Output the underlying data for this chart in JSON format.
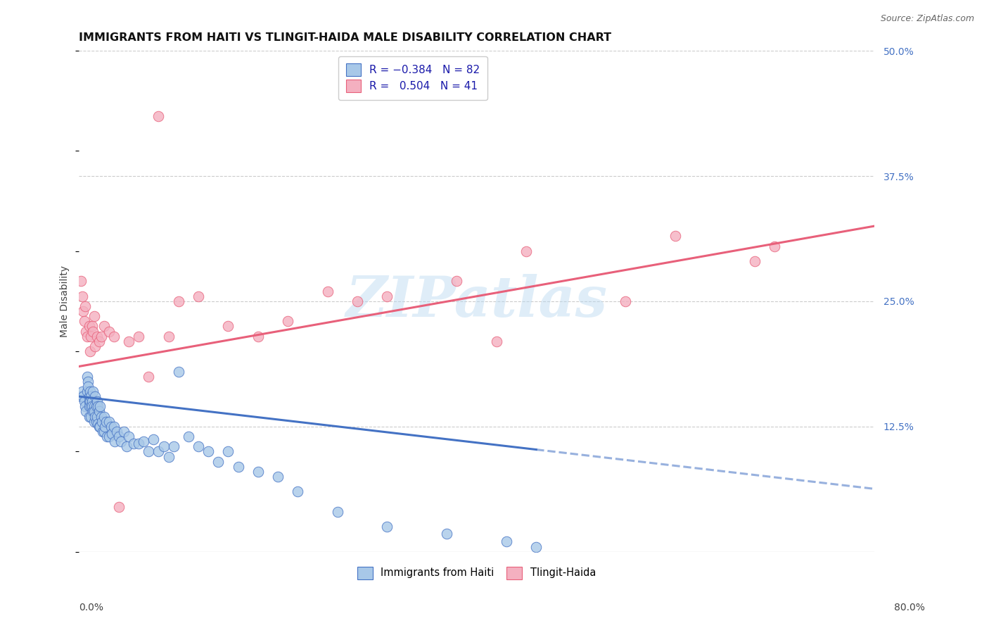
{
  "title": "IMMIGRANTS FROM HAITI VS TLINGIT-HAIDA MALE DISABILITY CORRELATION CHART",
  "source": "Source: ZipAtlas.com",
  "ylabel": "Male Disability",
  "legend_labels": [
    "Immigrants from Haiti",
    "Tlingit-Haida"
  ],
  "color_blue": "#a8c8e8",
  "color_pink": "#f4b0c0",
  "line_blue": "#4472c4",
  "line_pink": "#e8607a",
  "background": "#ffffff",
  "watermark": "ZIPatlas",
  "xlim": [
    0.0,
    0.8
  ],
  "ylim": [
    0.0,
    0.5
  ],
  "blue_scatter_x": [
    0.002,
    0.003,
    0.004,
    0.005,
    0.006,
    0.007,
    0.008,
    0.008,
    0.009,
    0.009,
    0.01,
    0.01,
    0.01,
    0.01,
    0.011,
    0.011,
    0.012,
    0.012,
    0.012,
    0.013,
    0.013,
    0.014,
    0.014,
    0.015,
    0.015,
    0.015,
    0.016,
    0.016,
    0.017,
    0.017,
    0.018,
    0.018,
    0.019,
    0.019,
    0.02,
    0.02,
    0.021,
    0.021,
    0.022,
    0.023,
    0.024,
    0.025,
    0.025,
    0.026,
    0.027,
    0.028,
    0.03,
    0.03,
    0.032,
    0.033,
    0.035,
    0.036,
    0.038,
    0.04,
    0.042,
    0.045,
    0.048,
    0.05,
    0.055,
    0.06,
    0.065,
    0.07,
    0.075,
    0.08,
    0.085,
    0.09,
    0.095,
    0.1,
    0.11,
    0.12,
    0.13,
    0.14,
    0.15,
    0.16,
    0.18,
    0.2,
    0.22,
    0.26,
    0.31,
    0.37,
    0.43,
    0.46
  ],
  "blue_scatter_y": [
    0.155,
    0.16,
    0.155,
    0.15,
    0.145,
    0.14,
    0.175,
    0.16,
    0.17,
    0.165,
    0.155,
    0.15,
    0.145,
    0.135,
    0.16,
    0.15,
    0.155,
    0.145,
    0.135,
    0.15,
    0.145,
    0.16,
    0.14,
    0.145,
    0.14,
    0.13,
    0.155,
    0.135,
    0.145,
    0.13,
    0.15,
    0.135,
    0.145,
    0.128,
    0.14,
    0.125,
    0.145,
    0.125,
    0.135,
    0.13,
    0.12,
    0.135,
    0.12,
    0.125,
    0.13,
    0.115,
    0.13,
    0.115,
    0.125,
    0.118,
    0.125,
    0.11,
    0.12,
    0.115,
    0.11,
    0.12,
    0.105,
    0.115,
    0.108,
    0.108,
    0.11,
    0.1,
    0.112,
    0.1,
    0.105,
    0.095,
    0.105,
    0.18,
    0.115,
    0.105,
    0.1,
    0.09,
    0.1,
    0.085,
    0.08,
    0.075,
    0.06,
    0.04,
    0.025,
    0.018,
    0.01,
    0.005
  ],
  "pink_scatter_x": [
    0.002,
    0.003,
    0.004,
    0.005,
    0.006,
    0.007,
    0.008,
    0.01,
    0.011,
    0.012,
    0.013,
    0.014,
    0.015,
    0.016,
    0.018,
    0.02,
    0.022,
    0.025,
    0.03,
    0.035,
    0.04,
    0.05,
    0.06,
    0.07,
    0.08,
    0.09,
    0.1,
    0.12,
    0.15,
    0.18,
    0.21,
    0.25,
    0.28,
    0.31,
    0.38,
    0.42,
    0.45,
    0.55,
    0.6,
    0.68,
    0.7
  ],
  "pink_scatter_y": [
    0.27,
    0.255,
    0.24,
    0.23,
    0.245,
    0.22,
    0.215,
    0.225,
    0.2,
    0.215,
    0.225,
    0.22,
    0.235,
    0.205,
    0.215,
    0.21,
    0.215,
    0.225,
    0.22,
    0.215,
    0.045,
    0.21,
    0.215,
    0.175,
    0.435,
    0.215,
    0.25,
    0.255,
    0.225,
    0.215,
    0.23,
    0.26,
    0.25,
    0.255,
    0.27,
    0.21,
    0.3,
    0.25,
    0.315,
    0.29,
    0.305
  ],
  "blue_line_solid_end": 0.46,
  "blue_line_start_y": 0.155,
  "blue_line_end_y_solid": 0.102,
  "pink_line_start_y": 0.185,
  "pink_line_end_y": 0.325
}
